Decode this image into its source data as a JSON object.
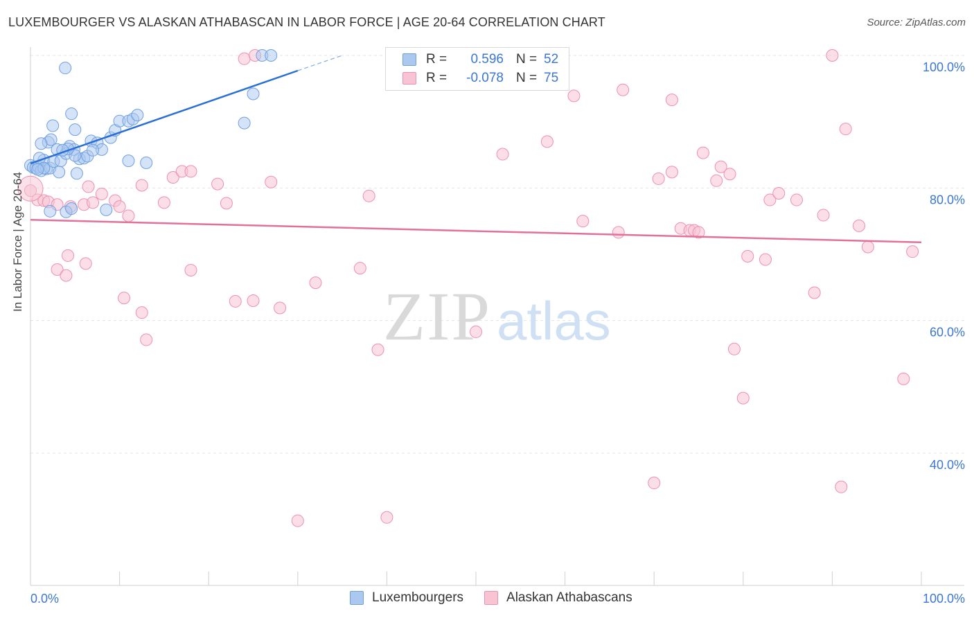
{
  "title": "LUXEMBOURGER VS ALASKAN ATHABASCAN IN LABOR FORCE | AGE 20-64 CORRELATION CHART",
  "source": "Source: ZipAtlas.com",
  "watermark": {
    "zip": "ZIP",
    "atlas": "atlas"
  },
  "legend": {
    "rows": [
      {
        "r_label": "R =",
        "r_value": "0.596",
        "n_label": "N =",
        "n_value": "52"
      },
      {
        "r_label": "R =",
        "r_value": "-0.078",
        "n_label": "N =",
        "n_value": "75"
      }
    ]
  },
  "bottom_legend": [
    "Luxembourgers",
    "Alaskan Athabascans"
  ],
  "colors": {
    "blue_fill": "#aac8f0",
    "blue_stroke": "#6f9fe0",
    "blue_line": "#2a6fd6",
    "pink_fill": "#f8c3d3",
    "pink_stroke": "#ee8fb0",
    "pink_line": "#e2709a",
    "axis_text": "#3b76d6",
    "grid": "#e4e4e4"
  },
  "chart_data": {
    "type": "scatter",
    "title": "LUXEMBOURGER VS ALASKAN ATHABASCAN IN LABOR FORCE | AGE 20-64 CORRELATION CHART",
    "xlabel": "",
    "ylabel": "In Labor Force | Age 20-64",
    "xlim": [
      0,
      100
    ],
    "ylim": [
      18,
      102
    ],
    "x_tick_labels": [
      "0.0%",
      "100.0%"
    ],
    "y_ticks": [
      40,
      60,
      80,
      100
    ],
    "y_tick_labels": [
      "40.0%",
      "60.0%",
      "80.0%",
      "100.0%"
    ],
    "grid": true,
    "series": [
      {
        "name": "Luxembourgers",
        "r": 0.596,
        "n": 52,
        "trend": {
          "x0": 0,
          "y0": 83.7,
          "x1": 30,
          "y1": 97.7,
          "dash_to_x": 35,
          "dash_to_y": 100
        },
        "points": [
          [
            0.0,
            83.4
          ],
          [
            0.3,
            83.1
          ],
          [
            0.6,
            83.0
          ],
          [
            0.9,
            83.2
          ],
          [
            1.2,
            82.6
          ],
          [
            1.5,
            84.2
          ],
          [
            1.0,
            84.5
          ],
          [
            1.8,
            82.9
          ],
          [
            2.2,
            83.0
          ],
          [
            2.6,
            84.0
          ],
          [
            3.0,
            85.8
          ],
          [
            3.4,
            84.1
          ],
          [
            3.2,
            82.4
          ],
          [
            4.0,
            85.2
          ],
          [
            4.4,
            86.3
          ],
          [
            4.9,
            85.8
          ],
          [
            5.2,
            82.2
          ],
          [
            5.5,
            84.4
          ],
          [
            6.0,
            84.5
          ],
          [
            6.4,
            84.8
          ],
          [
            5.0,
            84.9
          ],
          [
            2.0,
            86.9
          ],
          [
            2.3,
            87.3
          ],
          [
            1.2,
            86.7
          ],
          [
            4.2,
            85.9
          ],
          [
            6.8,
            87.1
          ],
          [
            7.5,
            86.8
          ],
          [
            8.0,
            85.8
          ],
          [
            7.0,
            85.7
          ],
          [
            9.0,
            87.6
          ],
          [
            9.5,
            88.7
          ],
          [
            10.0,
            90.1
          ],
          [
            11.0,
            90.1
          ],
          [
            11.5,
            90.4
          ],
          [
            12.0,
            91.0
          ],
          [
            2.5,
            89.4
          ],
          [
            5.0,
            88.8
          ],
          [
            4.6,
            91.2
          ],
          [
            3.9,
            98.1
          ],
          [
            11.0,
            84.1
          ],
          [
            4.0,
            76.4
          ],
          [
            4.6,
            76.9
          ],
          [
            2.2,
            76.5
          ],
          [
            8.5,
            76.7
          ],
          [
            13.0,
            83.8
          ],
          [
            25.0,
            94.2
          ],
          [
            24.0,
            89.8
          ],
          [
            26.0,
            100.0
          ],
          [
            27.0,
            100.0
          ],
          [
            1.5,
            83.0
          ],
          [
            0.8,
            82.8
          ],
          [
            3.6,
            85.7
          ]
        ]
      },
      {
        "name": "Alaskan Athabascans",
        "r": -0.078,
        "n": 75,
        "trend": {
          "x0": 0,
          "y0": 75.2,
          "x1": 100,
          "y1": 71.8
        },
        "points": [
          [
            0.0,
            79.6
          ],
          [
            0.8,
            78.2
          ],
          [
            1.5,
            78.1
          ],
          [
            2.0,
            77.9
          ],
          [
            3.0,
            77.5
          ],
          [
            4.5,
            77.2
          ],
          [
            6.0,
            77.5
          ],
          [
            7.0,
            77.8
          ],
          [
            8.0,
            79.1
          ],
          [
            6.5,
            80.2
          ],
          [
            9.5,
            78.1
          ],
          [
            10.0,
            77.2
          ],
          [
            11.0,
            75.8
          ],
          [
            12.5,
            80.4
          ],
          [
            3.0,
            67.7
          ],
          [
            4.0,
            66.8
          ],
          [
            4.2,
            69.8
          ],
          [
            6.2,
            68.6
          ],
          [
            10.5,
            63.4
          ],
          [
            12.5,
            61.2
          ],
          [
            13.0,
            57.1
          ],
          [
            15.0,
            77.8
          ],
          [
            16.0,
            81.6
          ],
          [
            17.0,
            82.5
          ],
          [
            18.0,
            82.5
          ],
          [
            18.0,
            67.6
          ],
          [
            21.0,
            80.6
          ],
          [
            22.0,
            77.7
          ],
          [
            23.0,
            62.9
          ],
          [
            25.0,
            63.0
          ],
          [
            27.0,
            80.9
          ],
          [
            28.0,
            61.9
          ],
          [
            30.0,
            29.8
          ],
          [
            32.0,
            65.7
          ],
          [
            37.0,
            67.9
          ],
          [
            38.0,
            78.8
          ],
          [
            39.0,
            55.6
          ],
          [
            40.0,
            30.3
          ],
          [
            50.0,
            58.3
          ],
          [
            53.0,
            85.1
          ],
          [
            58.0,
            87.0
          ],
          [
            61.0,
            93.9
          ],
          [
            62.0,
            75.0
          ],
          [
            66.0,
            73.3
          ],
          [
            66.5,
            94.8
          ],
          [
            70.0,
            35.5
          ],
          [
            70.5,
            81.4
          ],
          [
            72.0,
            93.3
          ],
          [
            72.0,
            82.4
          ],
          [
            73.0,
            73.9
          ],
          [
            74.0,
            73.6
          ],
          [
            74.5,
            73.6
          ],
          [
            75.0,
            73.3
          ],
          [
            75.5,
            85.3
          ],
          [
            77.0,
            81.1
          ],
          [
            77.5,
            83.2
          ],
          [
            78.5,
            82.1
          ],
          [
            79.0,
            55.7
          ],
          [
            80.0,
            48.3
          ],
          [
            80.5,
            69.7
          ],
          [
            82.5,
            69.2
          ],
          [
            83.0,
            78.2
          ],
          [
            84.0,
            79.2
          ],
          [
            86.0,
            78.2
          ],
          [
            88.0,
            64.2
          ],
          [
            89.0,
            75.9
          ],
          [
            90.0,
            100.0
          ],
          [
            91.0,
            34.9
          ],
          [
            91.5,
            88.9
          ],
          [
            93.0,
            74.3
          ],
          [
            94.0,
            71.1
          ],
          [
            98.0,
            51.2
          ],
          [
            99.0,
            70.4
          ],
          [
            24.0,
            99.5
          ],
          [
            25.2,
            100.0
          ]
        ]
      }
    ]
  }
}
